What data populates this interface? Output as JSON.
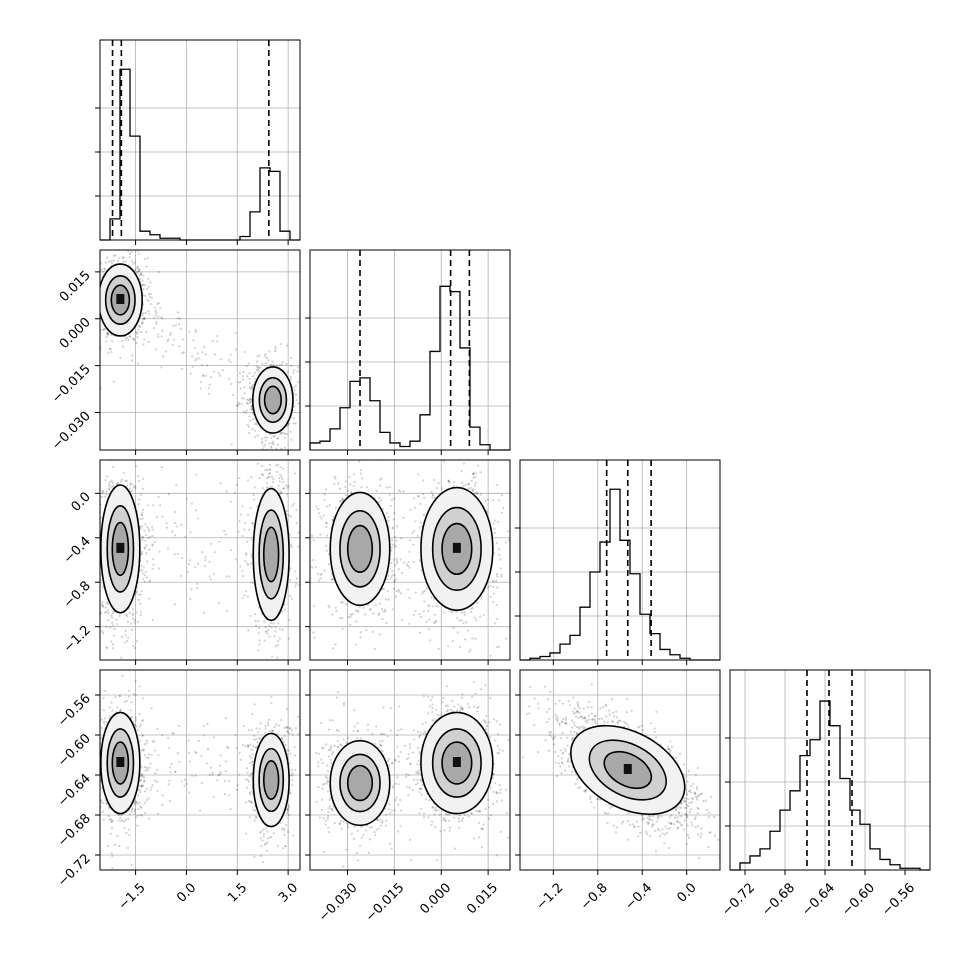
{
  "chart_data": {
    "type": "corner",
    "n_params": 4,
    "ticks": [
      {
        "values": [
          -1.5,
          0.0,
          1.5,
          3.0
        ],
        "labels": [
          "−1.5",
          "0.0",
          "1.5",
          "3.0"
        ]
      },
      {
        "values": [
          -0.03,
          -0.015,
          0.0,
          0.015
        ],
        "labels": [
          "−0.030",
          "−0.015",
          "0.000",
          "0.015"
        ]
      },
      {
        "values": [
          -1.2,
          -0.8,
          -0.4,
          0.0
        ],
        "labels": [
          "−1.2",
          "−0.8",
          "−0.4",
          "0.0"
        ]
      },
      {
        "values": [
          -0.72,
          -0.68,
          -0.64,
          -0.6,
          -0.56
        ],
        "labels": [
          "−0.72",
          "−0.68",
          "−0.64",
          "−0.60",
          "−0.56"
        ]
      }
    ],
    "ranges": [
      [
        -2.55,
        3.35
      ],
      [
        -0.042,
        0.022
      ],
      [
        -1.5,
        0.3
      ],
      [
        -0.735,
        -0.535
      ]
    ],
    "quantiles": [
      [
        -2.18,
        -1.92,
        2.43
      ],
      [
        -0.026,
        0.003,
        0.009
      ],
      [
        -0.72,
        -0.53,
        -0.32
      ],
      [
        -0.658,
        -0.636,
        -0.613
      ]
    ],
    "histograms": [
      [
        0.0,
        0.12,
        0.97,
        0.59,
        0.05,
        0.03,
        0.01,
        0.01,
        0.0,
        0.0,
        0.0,
        0.0,
        0.0,
        0.0,
        0.02,
        0.16,
        0.41,
        0.39,
        0.05,
        0.0
      ],
      [
        0.04,
        0.05,
        0.12,
        0.24,
        0.39,
        0.41,
        0.28,
        0.1,
        0.04,
        0.02,
        0.05,
        0.2,
        0.56,
        0.93,
        0.9,
        0.58,
        0.13,
        0.03,
        0.0,
        0.0
      ],
      [
        0.0,
        0.01,
        0.02,
        0.04,
        0.09,
        0.14,
        0.3,
        0.5,
        0.67,
        0.97,
        0.68,
        0.49,
        0.26,
        0.15,
        0.06,
        0.03,
        0.01,
        0.0,
        0.0,
        0.0
      ],
      [
        0.0,
        0.04,
        0.08,
        0.12,
        0.22,
        0.34,
        0.45,
        0.65,
        0.74,
        0.96,
        0.82,
        0.52,
        0.34,
        0.26,
        0.12,
        0.06,
        0.03,
        0.01,
        0.01,
        0.0
      ]
    ],
    "density_modes": [
      {
        "row": 1,
        "col": 0,
        "modes": [
          {
            "x": -1.95,
            "y": 0.006,
            "sx": 0.28,
            "sy": 0.005,
            "w": 0.6
          },
          {
            "x": 2.55,
            "y": -0.026,
            "sx": 0.28,
            "sy": 0.005,
            "w": 0.4
          }
        ]
      },
      {
        "row": 2,
        "col": 0,
        "modes": [
          {
            "x": -1.95,
            "y": -0.5,
            "sx": 0.25,
            "sy": 0.25,
            "w": 0.6
          },
          {
            "x": 2.5,
            "y": -0.55,
            "sx": 0.25,
            "sy": 0.28,
            "w": 0.4
          }
        ]
      },
      {
        "row": 2,
        "col": 1,
        "modes": [
          {
            "x": -0.026,
            "y": -0.5,
            "sx": 0.0045,
            "sy": 0.24,
            "w": 0.4
          },
          {
            "x": 0.005,
            "y": -0.5,
            "sx": 0.005,
            "sy": 0.24,
            "w": 0.6
          }
        ]
      },
      {
        "row": 3,
        "col": 0,
        "modes": [
          {
            "x": -1.95,
            "y": -0.628,
            "sx": 0.25,
            "sy": 0.022,
            "w": 0.6
          },
          {
            "x": 2.5,
            "y": -0.645,
            "sx": 0.25,
            "sy": 0.022,
            "w": 0.4
          }
        ]
      },
      {
        "row": 3,
        "col": 1,
        "modes": [
          {
            "x": -0.026,
            "y": -0.648,
            "sx": 0.0045,
            "sy": 0.02,
            "w": 0.4
          },
          {
            "x": 0.005,
            "y": -0.628,
            "sx": 0.005,
            "sy": 0.022,
            "w": 0.6
          }
        ]
      },
      {
        "row": 3,
        "col": 2,
        "modes": [
          {
            "x": -0.53,
            "y": -0.635,
            "sx": 0.24,
            "sy": 0.022,
            "w": 1.0,
            "rho": -0.65
          }
        ]
      }
    ],
    "grid": true,
    "xlabel": "",
    "ylabel": ""
  }
}
